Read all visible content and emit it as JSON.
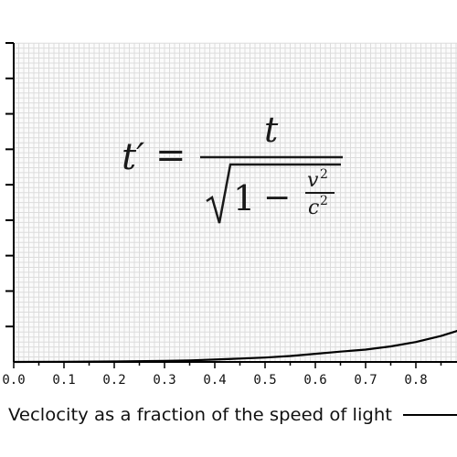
{
  "chart_data": {
    "type": "line",
    "xlabel": "Veclocity as a fraction of the speed of light",
    "xlim": [
      0.0,
      0.9
    ],
    "x_ticks": [
      "0.0",
      "0.1",
      "0.2",
      "0.3",
      "0.4",
      "0.5",
      "0.6",
      "0.7",
      "0.8"
    ],
    "y_tick_count": 9,
    "grid": true,
    "series": [
      {
        "x": [
          0.0,
          0.1,
          0.2,
          0.3,
          0.35,
          0.4,
          0.45,
          0.5,
          0.55,
          0.6,
          0.65,
          0.7,
          0.75,
          0.8,
          0.85,
          0.88,
          0.9
        ],
        "y": [
          0.0,
          0.02,
          0.06,
          0.14,
          0.2,
          0.3,
          0.42,
          0.55,
          0.75,
          1.02,
          1.3,
          1.55,
          1.95,
          2.5,
          3.25,
          3.85,
          4.3
        ]
      }
    ],
    "ylim": [
      0,
      40
    ],
    "annotation": {
      "lhs": "t′",
      "equals": "=",
      "numerator": "t",
      "one": "1",
      "minus": "−",
      "v": "v",
      "c": "c",
      "exp": "2"
    }
  },
  "colors": {
    "grid": "#dcdcdc",
    "axis": "#000000",
    "line": "#000000",
    "text": "#111111"
  }
}
